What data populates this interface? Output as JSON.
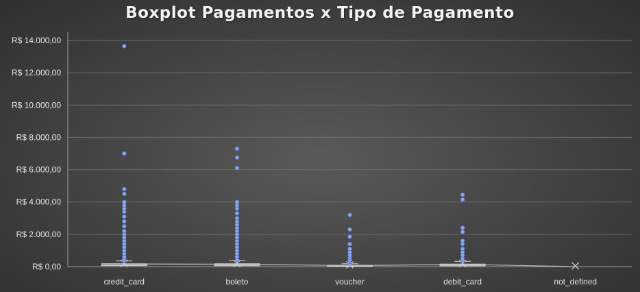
{
  "chart_data": {
    "type": "boxplot",
    "title": "Boxplot Pagamentos x Tipo de Pagamento",
    "categories": [
      "credit_card",
      "boleto",
      "voucher",
      "debit_card",
      "not_defined"
    ],
    "y_ticks": [
      "R$ 0,00",
      "R$ 2.000,00",
      "R$ 4.000,00",
      "R$ 6.000,00",
      "R$ 8.000,00",
      "R$ 10.000,00",
      "R$ 12.000,00",
      "R$ 14.000,00"
    ],
    "ylim": [
      0,
      14000
    ],
    "grid": true,
    "series": [
      {
        "category": "credit_card",
        "min": 0,
        "q1": 60,
        "median": 110,
        "q3": 180,
        "max": 350,
        "mean": 165,
        "outliers": [
          360,
          450,
          600,
          800,
          1000,
          1200,
          1400,
          1600,
          1800,
          2000,
          2200,
          2500,
          2800,
          3100,
          3400,
          3600,
          3800,
          4000,
          4500,
          4800,
          7000,
          13650
        ]
      },
      {
        "category": "boleto",
        "min": 0,
        "q1": 55,
        "median": 100,
        "q3": 180,
        "max": 370,
        "mean": 150,
        "outliers": [
          400,
          600,
          800,
          1000,
          1200,
          1400,
          1600,
          1800,
          2000,
          2200,
          2400,
          2600,
          2800,
          3000,
          3300,
          3600,
          3800,
          4000,
          6100,
          6750,
          7300
        ]
      },
      {
        "category": "voucher",
        "min": 0,
        "q1": 15,
        "median": 40,
        "q3": 90,
        "max": 180,
        "mean": 65,
        "outliers": [
          200,
          300,
          400,
          550,
          700,
          900,
          1100,
          1400,
          1850,
          2300,
          3200
        ]
      },
      {
        "category": "debit_card",
        "min": 0,
        "q1": 50,
        "median": 95,
        "q3": 160,
        "max": 330,
        "mean": 140,
        "outliers": [
          350,
          500,
          700,
          900,
          1100,
          1400,
          1600,
          2150,
          2400,
          4150,
          4450
        ]
      },
      {
        "category": "not_defined",
        "min": 0,
        "q1": 0,
        "median": 0,
        "q3": 0,
        "max": 0,
        "mean": 0,
        "outliers": []
      }
    ],
    "colors": {
      "box_fill": "#a9a9a9",
      "box_stroke": "#d0d0d0",
      "outlier": "#8fa8e6",
      "outlier_stroke": "#5b73c4",
      "grid": "#6e6e6e",
      "axis": "#9a9a9a",
      "mean_line": "#bdbdbd",
      "mean_marker": "#cfcfcf"
    }
  }
}
